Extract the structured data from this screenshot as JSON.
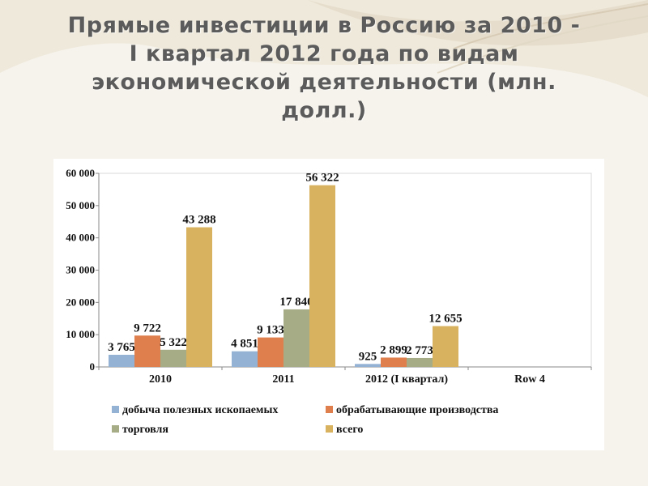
{
  "slide": {
    "title_lines": [
      "Прямые инвестиции в Россию за 2010 -",
      "I квартал 2012 года по видам",
      "экономической деятельности (млн.",
      "долл.)"
    ]
  },
  "colors": {
    "background": "#f6f3ec",
    "series": [
      "#94b3d4",
      "#de7f4d",
      "#a5ac86",
      "#d9b25f"
    ]
  },
  "chart_data": {
    "type": "bar",
    "categories": [
      "2010",
      "2011",
      "2012 (I квартал)",
      "Row 4"
    ],
    "series": [
      {
        "name": "добыча полезных ископаемых",
        "values": [
          3765,
          4851,
          925,
          null
        ],
        "labels": [
          "3 765",
          "4 851",
          "925",
          ""
        ]
      },
      {
        "name": "обрабатывающие производства",
        "values": [
          9722,
          9133,
          2899,
          null
        ],
        "labels": [
          "9 722",
          "9 133",
          "2 899",
          ""
        ]
      },
      {
        "name": "торговля",
        "values": [
          5322,
          17840,
          2773,
          null
        ],
        "labels": [
          "5 322",
          "17 840",
          "2 773",
          ""
        ]
      },
      {
        "name": "всего",
        "values": [
          43288,
          56322,
          12655,
          null
        ],
        "labels": [
          "43 288",
          "56 322",
          "12 655",
          ""
        ]
      }
    ],
    "ylim": [
      0,
      60000
    ],
    "yticks": [
      0,
      10000,
      20000,
      30000,
      40000,
      50000,
      60000
    ],
    "ytick_labels": [
      "0",
      "10 000",
      "20 000",
      "30 000",
      "40 000",
      "50 000",
      "60 000"
    ],
    "grid": false,
    "legend_position": "bottom"
  }
}
